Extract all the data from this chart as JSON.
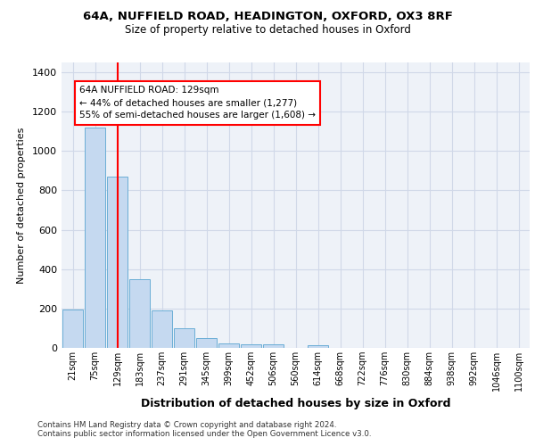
{
  "title_line1": "64A, NUFFIELD ROAD, HEADINGTON, OXFORD, OX3 8RF",
  "title_line2": "Size of property relative to detached houses in Oxford",
  "xlabel": "Distribution of detached houses by size in Oxford",
  "ylabel": "Number of detached properties",
  "footer_line1": "Contains HM Land Registry data © Crown copyright and database right 2024.",
  "footer_line2": "Contains public sector information licensed under the Open Government Licence v3.0.",
  "bar_labels": [
    "21sqm",
    "75sqm",
    "129sqm",
    "183sqm",
    "237sqm",
    "291sqm",
    "345sqm",
    "399sqm",
    "452sqm",
    "506sqm",
    "560sqm",
    "614sqm",
    "668sqm",
    "722sqm",
    "776sqm",
    "830sqm",
    "884sqm",
    "938sqm",
    "992sqm",
    "1046sqm",
    "1100sqm"
  ],
  "bar_values": [
    195,
    1120,
    870,
    350,
    190,
    100,
    50,
    22,
    18,
    17,
    0,
    12,
    0,
    0,
    0,
    0,
    0,
    0,
    0,
    0,
    0
  ],
  "bar_color": "#c5d9f0",
  "bar_edge_color": "#6baed6",
  "grid_color": "#d0d8e8",
  "background_color": "#eef2f8",
  "vline_x": 2,
  "vline_color": "red",
  "annotation_text": "64A NUFFIELD ROAD: 129sqm\n← 44% of detached houses are smaller (1,277)\n55% of semi-detached houses are larger (1,608) →",
  "annotation_box_color": "white",
  "annotation_box_edge_color": "red",
  "ylim": [
    0,
    1450
  ],
  "yticks": [
    0,
    200,
    400,
    600,
    800,
    1000,
    1200,
    1400
  ]
}
